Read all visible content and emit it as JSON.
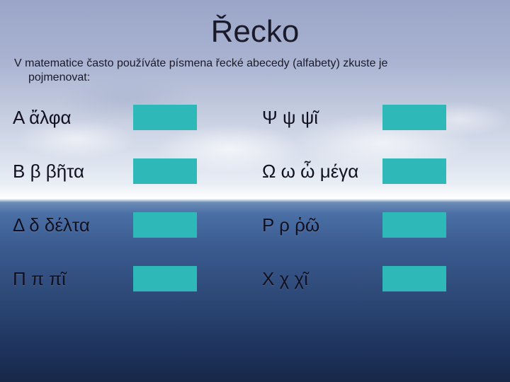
{
  "title": "Řecko",
  "subtitle_line1": "V matematice často používáte písmena řecké abecedy (alfabety) zkuste je",
  "subtitle_line2": "pojmenovat:",
  "letters": {
    "left": [
      "Α ἄλφα",
      "Β β βῆτα",
      "Δ δ δέλτα",
      "Π π πῖ"
    ],
    "right": [
      "Ψ ψ ψῖ",
      "Ω ω ὦ μέγα",
      "Ρ ρ ῥῶ",
      "Χ χ   χῖ"
    ]
  },
  "colors": {
    "box": "#2fb8b8",
    "text": "#101020"
  }
}
